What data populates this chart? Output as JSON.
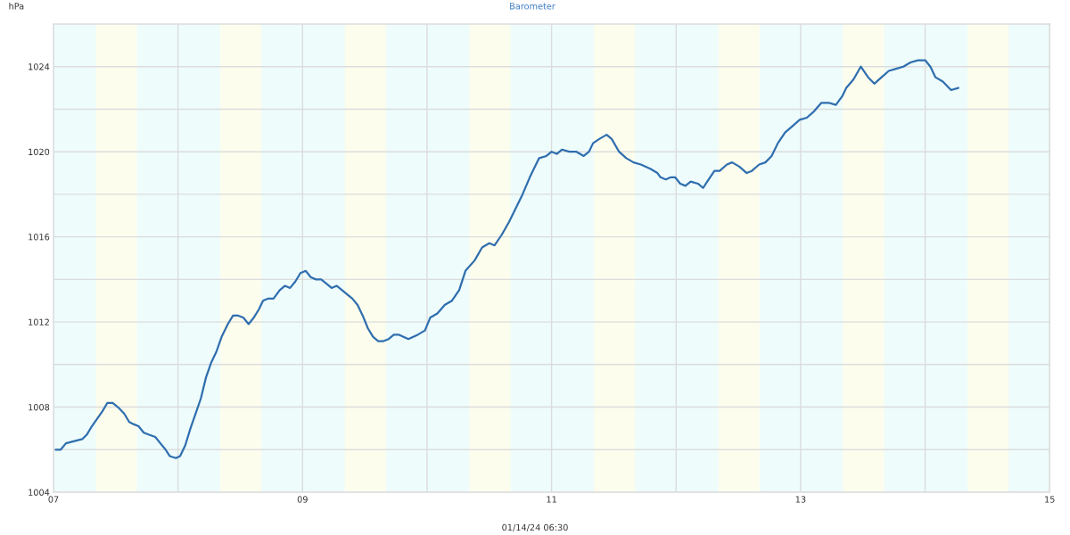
{
  "chart_data": {
    "type": "line",
    "title": "Barometer",
    "ylabel": "hPa",
    "xlabel": "01/14/24 06:30",
    "xlim": [
      7,
      15
    ],
    "xticks": [
      {
        "value": 7,
        "label": "07"
      },
      {
        "value": 8,
        "label": null
      },
      {
        "value": 9,
        "label": "09"
      },
      {
        "value": 10,
        "label": null
      },
      {
        "value": 11,
        "label": "11"
      },
      {
        "value": 12,
        "label": null
      },
      {
        "value": 13,
        "label": "13"
      },
      {
        "value": 14,
        "label": null
      },
      {
        "value": 15,
        "label": "15"
      }
    ],
    "ylim": [
      1004,
      1026
    ],
    "yticks": [
      1004,
      {
        "value": 1006,
        "label": null
      },
      1008,
      {
        "value": 1010,
        "label": null
      },
      1012,
      {
        "value": 1014,
        "label": null
      },
      1016,
      {
        "value": 1018,
        "label": null
      },
      1020,
      {
        "value": 1022,
        "label": null
      },
      1024
    ],
    "grid": true,
    "line_style": "solid",
    "bands": [
      {
        "axis": "x",
        "from": 7.34,
        "to": 7.67,
        "color": "#fdfdee"
      },
      {
        "axis": "x",
        "from": 8.34,
        "to": 8.67,
        "color": "#fdfdee"
      },
      {
        "axis": "x",
        "from": 9.34,
        "to": 9.67,
        "color": "#fdfdee"
      },
      {
        "axis": "x",
        "from": 10.34,
        "to": 10.67,
        "color": "#fdfdee"
      },
      {
        "axis": "x",
        "from": 11.34,
        "to": 11.67,
        "color": "#fdfdee"
      },
      {
        "axis": "x",
        "from": 12.34,
        "to": 12.67,
        "color": "#fdfdee"
      },
      {
        "axis": "x",
        "from": 13.34,
        "to": 13.67,
        "color": "#fdfdee"
      },
      {
        "axis": "x",
        "from": 14.34,
        "to": 14.67,
        "color": "#fdfdee"
      }
    ],
    "series": [
      {
        "color": "#2f6eae",
        "x": [
          7.017,
          7.058,
          7.1,
          7.233,
          7.267,
          7.308,
          7.392,
          7.433,
          7.475,
          7.517,
          7.567,
          7.608,
          7.642,
          7.683,
          7.725,
          7.767,
          7.817,
          7.858,
          7.9,
          7.933,
          7.983,
          8.017,
          8.058,
          8.1,
          8.142,
          8.183,
          8.225,
          8.267,
          8.308,
          8.35,
          8.4,
          8.442,
          8.483,
          8.525,
          8.567,
          8.608,
          8.65,
          8.683,
          8.725,
          8.767,
          8.817,
          8.858,
          8.9,
          8.942,
          8.983,
          9.025,
          9.067,
          9.108,
          9.15,
          9.192,
          9.233,
          9.275,
          9.317,
          9.358,
          9.4,
          9.442,
          9.483,
          9.525,
          9.567,
          9.608,
          9.65,
          9.692,
          9.733,
          9.775,
          9.85,
          9.925,
          9.983,
          10.025,
          10.083,
          10.142,
          10.2,
          10.258,
          10.308,
          10.383,
          10.442,
          10.5,
          10.542,
          10.6,
          10.658,
          10.717,
          10.767,
          10.825,
          10.9,
          10.958,
          11.0,
          11.042,
          11.083,
          11.142,
          11.2,
          11.258,
          11.3,
          11.333,
          11.383,
          11.442,
          11.483,
          11.542,
          11.6,
          11.658,
          11.717,
          11.792,
          11.85,
          11.875,
          11.917,
          11.958,
          11.992,
          12.033,
          12.075,
          12.117,
          12.175,
          12.217,
          12.25,
          12.308,
          12.35,
          12.408,
          12.45,
          12.508,
          12.567,
          12.608,
          12.667,
          12.717,
          12.767,
          12.817,
          12.875,
          12.933,
          12.992,
          13.05,
          13.108,
          13.167,
          13.225,
          13.283,
          13.333,
          13.367,
          13.425,
          13.483,
          13.542,
          13.592,
          13.65,
          13.708,
          13.767,
          13.825,
          13.883,
          13.942,
          14.0,
          14.042,
          14.083,
          14.142,
          14.208,
          14.267
        ],
        "values": [
          1006.0,
          1006.0,
          1006.3,
          1006.5,
          1006.7,
          1007.1,
          1007.8,
          1008.2,
          1008.2,
          1008.0,
          1007.7,
          1007.3,
          1007.2,
          1007.1,
          1006.8,
          1006.7,
          1006.6,
          1006.3,
          1006.0,
          1005.7,
          1005.6,
          1005.7,
          1006.2,
          1007.0,
          1007.7,
          1008.4,
          1009.4,
          1010.1,
          1010.6,
          1011.3,
          1011.9,
          1012.3,
          1012.3,
          1012.2,
          1011.9,
          1012.2,
          1012.6,
          1013.0,
          1013.1,
          1013.1,
          1013.5,
          1013.7,
          1013.6,
          1013.9,
          1014.3,
          1014.4,
          1014.1,
          1014.0,
          1014.0,
          1013.8,
          1013.6,
          1013.7,
          1013.5,
          1013.3,
          1013.1,
          1012.8,
          1012.3,
          1011.7,
          1011.3,
          1011.1,
          1011.1,
          1011.2,
          1011.4,
          1011.4,
          1011.2,
          1011.4,
          1011.6,
          1012.2,
          1012.4,
          1012.8,
          1013.0,
          1013.5,
          1014.4,
          1014.9,
          1015.5,
          1015.7,
          1015.6,
          1016.1,
          1016.7,
          1017.4,
          1018.0,
          1018.8,
          1019.7,
          1019.8,
          1020.0,
          1019.9,
          1020.1,
          1020.0,
          1020.0,
          1019.8,
          1020.0,
          1020.4,
          1020.6,
          1020.8,
          1020.6,
          1020.0,
          1019.7,
          1019.5,
          1019.4,
          1019.2,
          1019.0,
          1018.8,
          1018.7,
          1018.8,
          1018.8,
          1018.5,
          1018.4,
          1018.6,
          1018.5,
          1018.3,
          1018.6,
          1019.1,
          1019.1,
          1019.4,
          1019.5,
          1019.3,
          1019.0,
          1019.1,
          1019.4,
          1019.5,
          1019.8,
          1020.4,
          1020.9,
          1021.2,
          1021.5,
          1021.6,
          1021.9,
          1022.3,
          1022.3,
          1022.2,
          1022.6,
          1023.0,
          1023.4,
          1024.0,
          1023.5,
          1023.2,
          1023.5,
          1023.8,
          1023.9,
          1024.0,
          1024.2,
          1024.3,
          1024.3,
          1024.0,
          1023.5,
          1023.3,
          1022.9,
          1023.0
        ]
      }
    ]
  }
}
